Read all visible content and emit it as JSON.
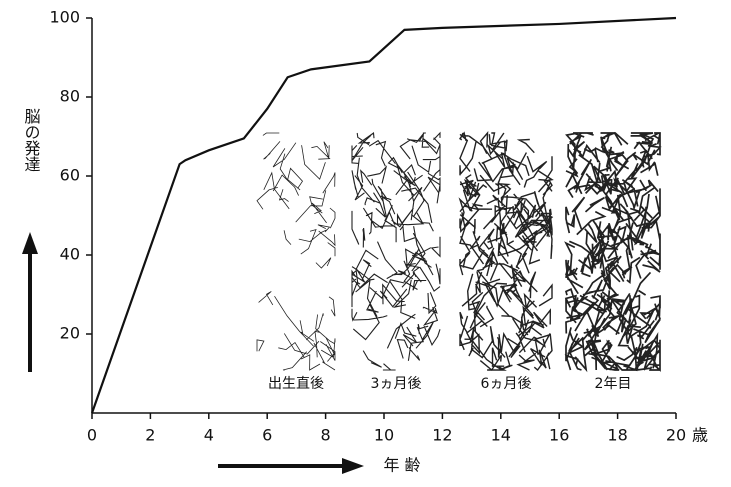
{
  "chart_data": {
    "type": "line",
    "ylabel": "脳の発達",
    "xlabel": "年 齢",
    "x_unit": "歳",
    "x": [
      0,
      3,
      3.2,
      4,
      5.2,
      6,
      6.7,
      7.5,
      9.5,
      10.7,
      12,
      16,
      20
    ],
    "series": [
      {
        "color": "#111111",
        "values": [
          0,
          63,
          64,
          66.5,
          69.5,
          77,
          85,
          87,
          89,
          97,
          97.5,
          98.5,
          100
        ]
      }
    ],
    "xlim": [
      0,
      20
    ],
    "xticks": [
      0,
      2,
      4,
      6,
      8,
      10,
      12,
      14,
      16,
      18,
      20
    ],
    "ylim": [
      0,
      100
    ],
    "yticks": [
      20,
      40,
      60,
      80,
      100
    ],
    "image_labels": [
      "出生直後",
      "3ヵ月後",
      "6ヵ月後",
      "2年目"
    ]
  }
}
